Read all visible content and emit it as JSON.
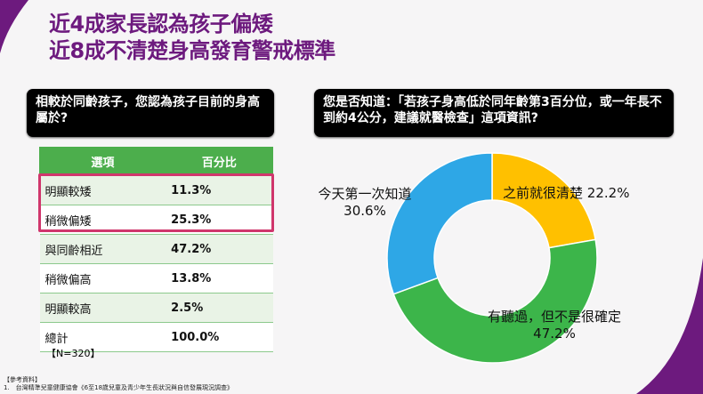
{
  "title": {
    "line1": "近4成家長認為孩子偏矮",
    "line2": "近8成不清楚身高發育警戒標準"
  },
  "question1": "相較於同齡孩子，您認為孩子目前的身高屬於?",
  "question2": "您是否知道：「若孩子身高低於同年齡第3百分位，或一年長不到約4公分，建議就醫檢查」這項資訊?",
  "table": {
    "headers": [
      "選項",
      "百分比"
    ],
    "rows": [
      [
        "明顯較矮",
        "11.3%"
      ],
      [
        "稍微偏矮",
        "25.3%"
      ],
      [
        "與同齡相近",
        "47.2%"
      ],
      [
        "稍微偏高",
        "13.8%"
      ],
      [
        "明顯較高",
        "2.5%"
      ],
      [
        "總計",
        "100.0%"
      ]
    ]
  },
  "sample": "【N=320】",
  "references": {
    "heading": "【參考資料】",
    "items": [
      "1.　台灣精準兒童健康協會《6至18歲兒童及青少年生長狀況與自信發展現況調查》"
    ]
  },
  "colors": {
    "accent": "#6d1a7e",
    "highlight": "#d0366c",
    "table_header": "#4cae4c"
  },
  "chart_data": {
    "type": "pie",
    "subtype": "donut",
    "categories": [
      "之前就很清楚",
      "有聽過，但不是很確定",
      "今天第一次知道"
    ],
    "values": [
      22.2,
      47.2,
      30.6
    ],
    "labels": [
      "22.2%",
      "47.2%",
      "30.6%"
    ],
    "colors": [
      "#ffc000",
      "#3cb54a",
      "#2ea7e6"
    ]
  }
}
